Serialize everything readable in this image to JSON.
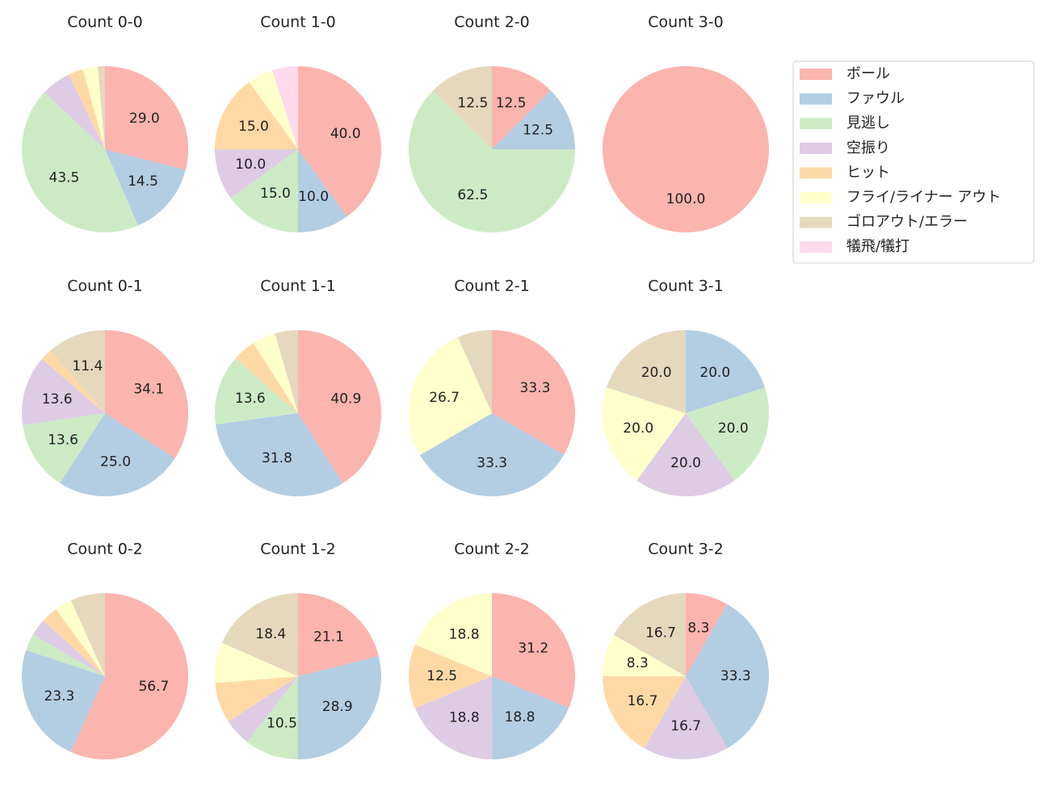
{
  "chart_data": {
    "type": "pie",
    "categories": [
      "ボール",
      "ファウル",
      "見逃し",
      "空振り",
      "ヒット",
      "フライ/ライナー アウト",
      "ゴロアウト/エラー",
      "犠飛/犠打"
    ],
    "colors": [
      "#fbb4ae",
      "#b3cde3",
      "#ccebc5",
      "#decbe4",
      "#fed9a6",
      "#ffffcc",
      "#e5d8bd",
      "#fddaec"
    ],
    "legend": "right",
    "subplots": [
      {
        "title": "Count 0-0",
        "values": [
          29.0,
          14.5,
          43.5,
          5.8,
          2.9,
          2.9,
          1.4,
          0
        ],
        "value_labels": [
          "29.0",
          "14.5",
          "43.5",
          null,
          null,
          null,
          null,
          null
        ]
      },
      {
        "title": "Count 1-0",
        "values": [
          40.0,
          10.0,
          15.0,
          10.0,
          15.0,
          5.0,
          0,
          5.0
        ],
        "value_labels": [
          "40.0",
          "10.0",
          "15.0",
          "10.0",
          "15.0",
          null,
          null,
          null
        ]
      },
      {
        "title": "Count 2-0",
        "values": [
          12.5,
          12.5,
          62.5,
          0,
          0,
          0,
          12.5,
          0
        ],
        "value_labels": [
          "12.5",
          "12.5",
          "62.5",
          null,
          null,
          null,
          "12.5",
          null
        ]
      },
      {
        "title": "Count 3-0",
        "values": [
          100.0,
          0,
          0,
          0,
          0,
          0,
          0,
          0
        ],
        "value_labels": [
          "100.0",
          null,
          null,
          null,
          null,
          null,
          null,
          null
        ]
      },
      {
        "title": "Count 0-1",
        "values": [
          34.1,
          25.0,
          13.6,
          13.6,
          2.3,
          0,
          11.4,
          0
        ],
        "value_labels": [
          "34.1",
          "25.0",
          "13.6",
          "13.6",
          null,
          null,
          "11.4",
          null
        ]
      },
      {
        "title": "Count 1-1",
        "values": [
          40.9,
          31.8,
          13.6,
          0,
          4.5,
          4.5,
          4.5,
          0
        ],
        "value_labels": [
          "40.9",
          "31.8",
          "13.6",
          null,
          null,
          null,
          null,
          null
        ]
      },
      {
        "title": "Count 2-1",
        "values": [
          33.3,
          33.3,
          0,
          0,
          0,
          26.7,
          6.7,
          0
        ],
        "value_labels": [
          "33.3",
          "33.3",
          null,
          null,
          null,
          "26.7",
          null,
          null
        ]
      },
      {
        "title": "Count 3-1",
        "values": [
          0,
          20.0,
          20.0,
          20.0,
          0,
          20.0,
          20.0,
          0
        ],
        "value_labels": [
          null,
          "20.0",
          "20.0",
          "20.0",
          null,
          "20.0",
          "20.0",
          null
        ]
      },
      {
        "title": "Count 0-2",
        "values": [
          56.7,
          23.3,
          3.3,
          3.3,
          3.3,
          3.3,
          6.7,
          0
        ],
        "value_labels": [
          "56.7",
          "23.3",
          null,
          null,
          null,
          null,
          null,
          null
        ]
      },
      {
        "title": "Count 1-2",
        "values": [
          21.1,
          28.9,
          10.5,
          5.3,
          7.9,
          7.9,
          18.4,
          0
        ],
        "value_labels": [
          "21.1",
          "28.9",
          "10.5",
          null,
          null,
          null,
          "18.4",
          null
        ]
      },
      {
        "title": "Count 2-2",
        "values": [
          31.2,
          18.8,
          0,
          18.8,
          12.5,
          18.8,
          0,
          0
        ],
        "value_labels": [
          "31.2",
          "18.8",
          null,
          "18.8",
          "12.5",
          "18.8",
          null,
          null
        ]
      },
      {
        "title": "Count 3-2",
        "values": [
          8.3,
          33.3,
          0,
          16.7,
          16.7,
          8.3,
          16.7,
          0
        ],
        "value_labels": [
          "8.3",
          "33.3",
          null,
          "16.7",
          "16.7",
          "8.3",
          "16.7",
          null
        ]
      }
    ]
  }
}
